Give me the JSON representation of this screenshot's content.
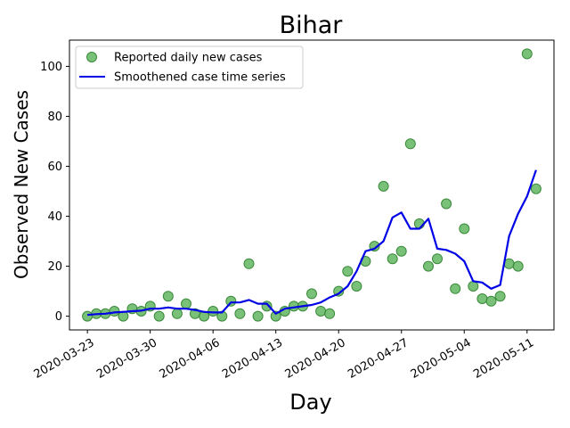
{
  "chart_data": {
    "type": "scatter",
    "title": "Bihar",
    "xlabel": "Day",
    "ylabel": "Observed New Cases",
    "x_tick_labels": [
      "2020-03-23",
      "2020-03-30",
      "2020-04-06",
      "2020-04-13",
      "2020-04-20",
      "2020-04-27",
      "2020-05-04",
      "2020-05-11"
    ],
    "x_ticks": [
      "2020-03-23",
      "2020-03-30",
      "2020-04-06",
      "2020-04-13",
      "2020-04-20",
      "2020-04-27",
      "2020-05-04",
      "2020-05-11"
    ],
    "xlim": [
      "2020-03-21",
      "2020-05-14"
    ],
    "y_ticks": [
      0,
      20,
      40,
      60,
      80,
      100
    ],
    "y_tick_labels": [
      "0",
      "20",
      "40",
      "60",
      "80",
      "100"
    ],
    "ylim": [
      -5.5,
      110.5
    ],
    "grid": false,
    "legend_position": "top-left",
    "series": [
      {
        "name": "Reported daily new cases",
        "kind": "scatter",
        "color": "#4cac4c",
        "x": [
          "2020-03-23",
          "2020-03-24",
          "2020-03-25",
          "2020-03-26",
          "2020-03-27",
          "2020-03-28",
          "2020-03-29",
          "2020-03-30",
          "2020-03-31",
          "2020-04-01",
          "2020-04-02",
          "2020-04-03",
          "2020-04-04",
          "2020-04-05",
          "2020-04-06",
          "2020-04-07",
          "2020-04-08",
          "2020-04-09",
          "2020-04-10",
          "2020-04-11",
          "2020-04-12",
          "2020-04-13",
          "2020-04-14",
          "2020-04-15",
          "2020-04-16",
          "2020-04-17",
          "2020-04-18",
          "2020-04-19",
          "2020-04-20",
          "2020-04-21",
          "2020-04-22",
          "2020-04-23",
          "2020-04-24",
          "2020-04-25",
          "2020-04-26",
          "2020-04-27",
          "2020-04-28",
          "2020-04-29",
          "2020-04-30",
          "2020-05-01",
          "2020-05-02",
          "2020-05-03",
          "2020-05-04",
          "2020-05-05",
          "2020-05-06",
          "2020-05-07",
          "2020-05-08",
          "2020-05-09",
          "2020-05-10",
          "2020-05-11",
          "2020-05-12"
        ],
        "y": [
          0,
          1,
          1,
          2,
          0,
          3,
          2,
          4,
          0,
          8,
          1,
          5,
          1,
          0,
          2,
          0,
          6,
          1,
          21,
          0,
          4,
          0,
          2,
          4,
          4,
          9,
          2,
          1,
          10,
          18,
          12,
          22,
          28,
          52,
          23,
          26,
          69,
          37,
          20,
          23,
          45,
          11,
          35,
          12,
          7,
          6,
          8,
          21,
          20,
          105,
          51
        ]
      },
      {
        "name": "Smoothened case time series",
        "kind": "line",
        "color": "#0000e6",
        "x": [
          "2020-03-23",
          "2020-03-24",
          "2020-03-25",
          "2020-03-26",
          "2020-03-27",
          "2020-03-28",
          "2020-03-29",
          "2020-03-30",
          "2020-03-31",
          "2020-04-01",
          "2020-04-02",
          "2020-04-03",
          "2020-04-04",
          "2020-04-05",
          "2020-04-06",
          "2020-04-07",
          "2020-04-08",
          "2020-04-09",
          "2020-04-10",
          "2020-04-11",
          "2020-04-12",
          "2020-04-13",
          "2020-04-14",
          "2020-04-15",
          "2020-04-16",
          "2020-04-17",
          "2020-04-18",
          "2020-04-19",
          "2020-04-20",
          "2020-04-21",
          "2020-04-22",
          "2020-04-23",
          "2020-04-24",
          "2020-04-25",
          "2020-04-26",
          "2020-04-27",
          "2020-04-28",
          "2020-04-29",
          "2020-04-30",
          "2020-05-01",
          "2020-05-02",
          "2020-05-03",
          "2020-05-04",
          "2020-05-05",
          "2020-05-06",
          "2020-05-07",
          "2020-05-08",
          "2020-05-09",
          "2020-05-10",
          "2020-05-11",
          "2020-05-12"
        ],
        "y": [
          0.5,
          0.8,
          1.0,
          1.5,
          1.7,
          2.0,
          2.2,
          3.0,
          3.0,
          3.5,
          3.0,
          3.0,
          2.5,
          1.7,
          1.5,
          1.5,
          5.5,
          5.5,
          6.5,
          5.0,
          5.0,
          1.0,
          3.0,
          3.5,
          4.0,
          4.5,
          5.5,
          7.5,
          9.0,
          12.0,
          18.0,
          26.0,
          27.0,
          30.0,
          39.5,
          41.5,
          35.0,
          35.0,
          39.0,
          27.0,
          26.5,
          25.0,
          22.0,
          14.0,
          13.5,
          11.0,
          12.5,
          32.0,
          41.0,
          48.0,
          58.5
        ]
      }
    ]
  }
}
